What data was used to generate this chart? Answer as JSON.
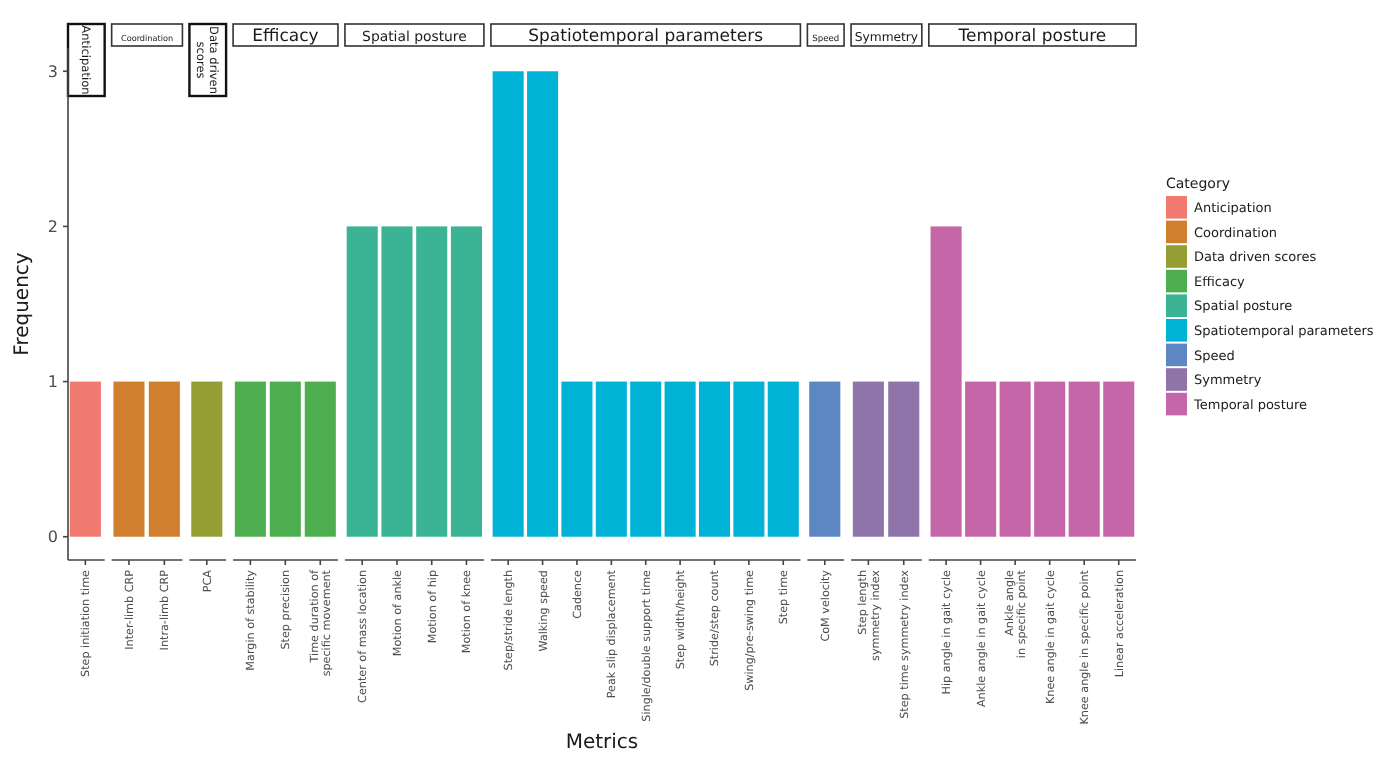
{
  "chart_data": {
    "type": "bar",
    "ylabel": "Frequency",
    "xlabel": "Metrics",
    "legend": "right",
    "legend_title": "Category",
    "ylim": [
      -0.15,
      3.15
    ],
    "yticks": [
      0,
      1,
      2,
      3
    ],
    "annotations": [
      "Anticipation",
      "Coordination",
      "Data driven scores",
      "Efficacy",
      "Spatial posture",
      "Spatiotemporal parameters",
      "Speed",
      "Symmetry",
      "Temporal posture"
    ],
    "categories": [
      "Step initiation time",
      "Inter-limb CRP",
      "Intra-limb CRP",
      "PCA",
      "Margin of stability",
      "Step precision",
      "Time duration of\nspecific movement",
      "Center of mass location",
      "Motion of ankle",
      "Motion of hip",
      "Motion of knee",
      "Step/stride length",
      "Walking speed",
      "Cadence",
      "Peak slip displacement",
      "Single/double support time",
      "Step width/height",
      "Stride/step count",
      "Swing/pre-swing time",
      "Step time",
      "CoM velocity",
      "Step length\nsymmetry index",
      "Step time symmetry index",
      "Hip angle in gait cycle",
      "Ankle angle in gait cycle",
      "Ankle angle\nin specific point",
      "Knee angle in gait cycle",
      "Knee angle in specific point",
      "Linear acceleration"
    ],
    "series": [
      {
        "name": "Anticipation",
        "color": "#f07a70",
        "values": [
          1,
          null,
          null,
          null,
          null,
          null,
          null,
          null,
          null,
          null,
          null,
          null,
          null,
          null,
          null,
          null,
          null,
          null,
          null,
          null,
          null,
          null,
          null,
          null,
          null,
          null,
          null,
          null,
          null
        ]
      },
      {
        "name": "Coordination",
        "color": "#d07f2e",
        "values": [
          null,
          1,
          1,
          null,
          null,
          null,
          null,
          null,
          null,
          null,
          null,
          null,
          null,
          null,
          null,
          null,
          null,
          null,
          null,
          null,
          null,
          null,
          null,
          null,
          null,
          null,
          null,
          null,
          null
        ]
      },
      {
        "name": "Data driven scores",
        "color": "#959e32",
        "values": [
          null,
          null,
          null,
          1,
          null,
          null,
          null,
          null,
          null,
          null,
          null,
          null,
          null,
          null,
          null,
          null,
          null,
          null,
          null,
          null,
          null,
          null,
          null,
          null,
          null,
          null,
          null,
          null,
          null
        ]
      },
      {
        "name": "Efficacy",
        "color": "#4dae4f",
        "values": [
          null,
          null,
          null,
          null,
          1,
          1,
          1,
          null,
          null,
          null,
          null,
          null,
          null,
          null,
          null,
          null,
          null,
          null,
          null,
          null,
          null,
          null,
          null,
          null,
          null,
          null,
          null,
          null,
          null
        ]
      },
      {
        "name": "Spatial posture",
        "color": "#3bb395",
        "values": [
          null,
          null,
          null,
          null,
          null,
          null,
          null,
          2,
          2,
          2,
          2,
          null,
          null,
          null,
          null,
          null,
          null,
          null,
          null,
          null,
          null,
          null,
          null,
          null,
          null,
          null,
          null,
          null,
          null
        ]
      },
      {
        "name": "Spatiotemporal parameters",
        "color": "#00b2d6",
        "values": [
          null,
          null,
          null,
          null,
          null,
          null,
          null,
          null,
          null,
          null,
          null,
          3,
          3,
          1,
          1,
          1,
          1,
          1,
          1,
          1,
          null,
          null,
          null,
          null,
          null,
          null,
          null,
          null,
          null
        ]
      },
      {
        "name": "Speed",
        "color": "#5c87c2",
        "values": [
          null,
          null,
          null,
          null,
          null,
          null,
          null,
          null,
          null,
          null,
          null,
          null,
          null,
          null,
          null,
          null,
          null,
          null,
          null,
          null,
          1,
          null,
          null,
          null,
          null,
          null,
          null,
          null,
          null
        ]
      },
      {
        "name": "Symmetry",
        "color": "#8f74aa",
        "values": [
          null,
          null,
          null,
          null,
          null,
          null,
          null,
          null,
          null,
          null,
          null,
          null,
          null,
          null,
          null,
          null,
          null,
          null,
          null,
          null,
          null,
          1,
          1,
          null,
          null,
          null,
          null,
          null,
          null
        ]
      },
      {
        "name": "Temporal posture",
        "color": "#c466a8",
        "values": [
          null,
          null,
          null,
          null,
          null,
          null,
          null,
          null,
          null,
          null,
          null,
          null,
          null,
          null,
          null,
          null,
          null,
          null,
          null,
          null,
          null,
          null,
          null,
          2,
          1,
          1,
          1,
          1,
          1
        ]
      }
    ]
  }
}
